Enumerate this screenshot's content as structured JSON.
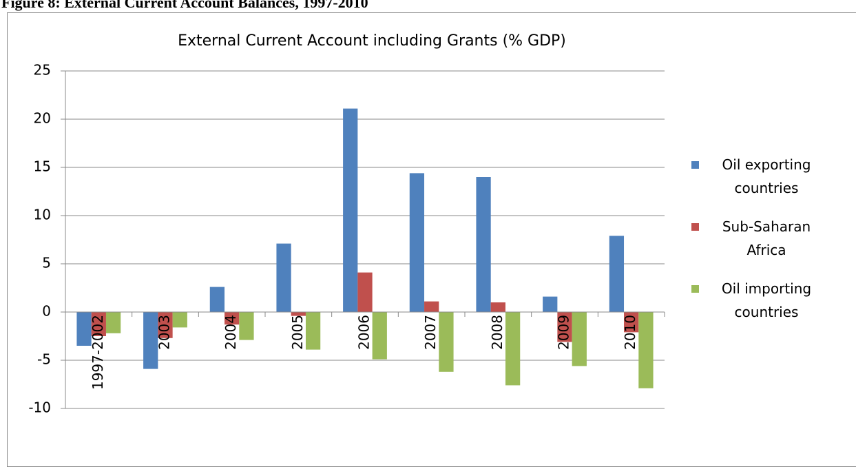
{
  "caption": "Figure 8: External Current Account Balances, 1997-2010",
  "chart_data": {
    "type": "bar",
    "title": "External Current Account including Grants (% GDP)",
    "categories": [
      "1997-2002",
      "2003",
      "2004",
      "2005",
      "2006",
      "2007",
      "2008",
      "2009",
      "2010"
    ],
    "series": [
      {
        "name": "Oil exporting countries",
        "color": "#4f81bd",
        "values": [
          -3.5,
          -5.9,
          2.6,
          7.1,
          21.1,
          14.4,
          14.0,
          1.6,
          7.9
        ]
      },
      {
        "name": "Sub-Saharan Africa",
        "color": "#c0504d",
        "values": [
          -2.5,
          -2.7,
          -1.3,
          -0.4,
          4.1,
          1.1,
          1.0,
          -3.1,
          -2.1
        ]
      },
      {
        "name": "Oil importing countries",
        "color": "#9bbb59",
        "values": [
          -2.2,
          -1.6,
          -2.9,
          -3.9,
          -4.9,
          -6.2,
          -7.6,
          -5.6,
          -7.9
        ]
      }
    ],
    "ylim": [
      -10,
      25
    ],
    "yticks": [
      -10,
      -5,
      0,
      5,
      10,
      15,
      20,
      25
    ],
    "grid": true,
    "legend": "right"
  }
}
